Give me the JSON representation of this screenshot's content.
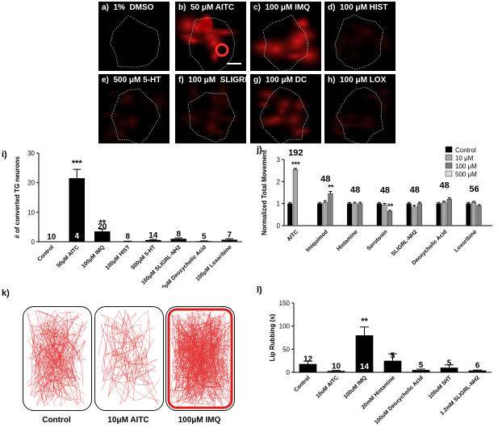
{
  "micrographs": [
    {
      "letter": "a)",
      "label": "1%  DMSO"
    },
    {
      "letter": "b)",
      "label": "50 μM AITC"
    },
    {
      "letter": "c)",
      "label": "100 μM IMQ"
    },
    {
      "letter": "d)",
      "label": "100 μM HIST"
    },
    {
      "letter": "e)",
      "label": "500 μM 5-HT"
    },
    {
      "letter": "f)",
      "label": "100 μM  SLIGRL"
    },
    {
      "letter": "g)",
      "label": "100 μM DC"
    },
    {
      "letter": "h)",
      "label": "100 μM LOX"
    }
  ],
  "panel_letters": {
    "i": "i)",
    "j": "j)",
    "k": "k)",
    "l": "l)"
  },
  "chart_data": [
    {
      "id": "i",
      "type": "bar",
      "ylabel": "# of converted TG neurons",
      "ylim": [
        0,
        30
      ],
      "yticks": [
        0,
        10,
        20,
        30
      ],
      "categories": [
        "Control",
        "50μM AITC",
        "100μM IMQ",
        "100μM HIST",
        "500μM 5-HT",
        "100μM SLIGRL-NH2",
        "100μM Deoxycholic Acid",
        "100μM Loxoribine"
      ],
      "values": [
        0,
        21.5,
        3.5,
        0.1,
        0.6,
        1.0,
        0.2,
        0.7
      ],
      "errors": [
        0,
        3.0,
        0.8,
        0.1,
        0.2,
        0.3,
        0.1,
        0.3
      ],
      "n_labels": [
        "10",
        "4",
        "20",
        "8",
        "14",
        "8",
        "5",
        "7"
      ],
      "significance": [
        "",
        "***",
        "**",
        "",
        "",
        "",
        "",
        ""
      ]
    },
    {
      "id": "j",
      "type": "bar",
      "ylabel": "Normalized Total Movement",
      "ylim": [
        0,
        3
      ],
      "yticks": [
        0,
        1,
        2,
        3
      ],
      "categories": [
        "AITC",
        "Imiquimod",
        "Histamine",
        "Serotonin",
        "SLIGRL-NH2",
        "Deoxycholic Acid",
        "Loxoribine"
      ],
      "series": [
        {
          "name": "Control",
          "color": "#000000",
          "values": [
            1.0,
            1.0,
            1.0,
            1.0,
            1.0,
            1.0,
            1.0
          ],
          "errors": [
            0.05,
            0.05,
            0.05,
            0.05,
            0.05,
            0.05,
            0.05
          ]
        },
        {
          "name": "10 μM",
          "color": "#a6a6a6",
          "values": [
            2.55,
            1.05,
            1.0,
            0.95,
            0.85,
            1.05,
            1.05
          ],
          "errors": [
            0.05,
            0.08,
            0.06,
            0.06,
            0.07,
            0.06,
            0.05
          ]
        },
        {
          "name": "100 μM",
          "color": "#7f7f7f",
          "values": [
            null,
            1.45,
            1.0,
            0.65,
            1.0,
            1.2,
            0.9
          ],
          "errors": [
            0,
            0.1,
            0.06,
            0.05,
            0.06,
            0.06,
            0.05
          ]
        },
        {
          "name": "500 μM",
          "color": "#d9d9d9",
          "values": [
            null,
            null,
            null,
            null,
            null,
            null,
            null
          ],
          "errors": [
            0,
            0,
            0,
            0,
            0,
            0,
            0
          ]
        }
      ],
      "n_labels": [
        "192",
        "48",
        "48",
        "48",
        "48",
        "48",
        "56"
      ],
      "significance": [
        {
          "category": 0,
          "series": 1,
          "text": "***"
        },
        {
          "category": 1,
          "series": 2,
          "text": "**"
        },
        {
          "category": 3,
          "series": 2,
          "text": "**"
        }
      ],
      "legend": "top-right"
    },
    {
      "id": "l",
      "type": "bar",
      "ylabel": "Lip Rubbing (s)",
      "ylim": [
        0,
        150
      ],
      "yticks": [
        0,
        50,
        100,
        150
      ],
      "categories": [
        "Control",
        "10uM AITC",
        "100uM IMQ",
        "20mM Histamine",
        "100uM Deoxycholic Acid",
        "100uM 5HT",
        "1.2mM SLIGRL-NH2"
      ],
      "values": [
        18,
        3,
        80,
        25,
        5,
        10,
        4
      ],
      "errors": [
        6,
        1,
        18,
        15,
        2,
        6,
        1
      ],
      "n_labels": [
        "12",
        "10",
        "14",
        "5",
        "5",
        "5",
        "6"
      ],
      "significance": [
        "",
        "",
        "**",
        "",
        "",
        "",
        ""
      ]
    }
  ],
  "trajectories": [
    {
      "caption": "Control",
      "density": 55
    },
    {
      "caption": "10μM AITC",
      "density": 22
    },
    {
      "caption": "100μM IMQ",
      "density": 130
    }
  ]
}
